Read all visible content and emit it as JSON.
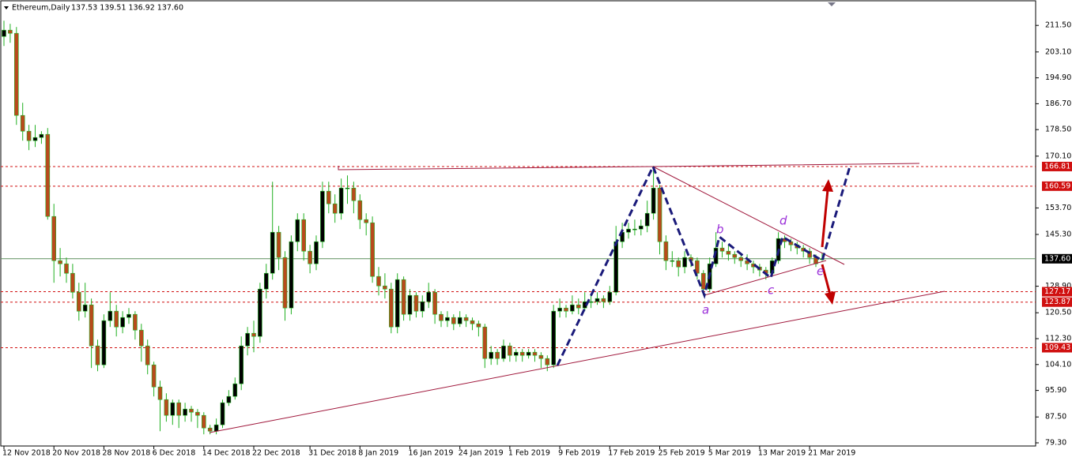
{
  "chart_data": {
    "type": "candlestick",
    "title": "Ethereum,Daily",
    "ohlc_text": "137.53 139.51 136.92 137.60",
    "up_color": "#000000",
    "down_color": "#b84a1c",
    "wick_color": "#22b022",
    "level_color": "#d01010",
    "current_color": "#5f8f5f",
    "ylim": [
      78.3,
      219.3
    ],
    "yticks": [
      {
        "value": 211.5,
        "label": "211.50"
      },
      {
        "value": 203.1,
        "label": "203.10"
      },
      {
        "value": 194.9,
        "label": "194.90"
      },
      {
        "value": 186.7,
        "label": "186.70"
      },
      {
        "value": 178.5,
        "label": "178.50"
      },
      {
        "value": 170.1,
        "label": "170.10"
      },
      {
        "value": 153.7,
        "label": "153.70"
      },
      {
        "value": 145.3,
        "label": "145.30"
      },
      {
        "value": 128.9,
        "label": "128.90"
      },
      {
        "value": 120.5,
        "label": "120.50"
      },
      {
        "value": 112.3,
        "label": "112.30"
      },
      {
        "value": 104.1,
        "label": "104.10"
      },
      {
        "value": 95.9,
        "label": "95.90"
      },
      {
        "value": 87.5,
        "label": "87.50"
      },
      {
        "value": 79.3,
        "label": "79.30"
      }
    ],
    "levels": [
      166.81,
      160.59,
      127.17,
      123.87,
      109.43
    ],
    "current_price": {
      "value": 137.6,
      "label": "137.60"
    },
    "wave_labels": [
      "a",
      "b",
      "c",
      "d",
      "e"
    ],
    "categories": [
      "12 Nov 2018",
      null,
      null,
      null,
      null,
      null,
      null,
      null,
      "20 Nov 2018",
      null,
      null,
      null,
      null,
      null,
      null,
      null,
      "28 Nov 2018",
      null,
      null,
      null,
      null,
      null,
      null,
      null,
      "6 Dec 2018",
      null,
      null,
      null,
      null,
      null,
      null,
      null,
      "14 Dec 2018",
      null,
      null,
      null,
      null,
      null,
      null,
      null,
      "22 Dec 2018",
      null,
      null,
      null,
      null,
      null,
      null,
      null,
      null,
      "31 Dec 2018",
      null,
      null,
      null,
      null,
      null,
      null,
      null,
      "8 Jan 2019",
      null,
      null,
      null,
      null,
      null,
      null,
      null,
      "16 Jan 2019",
      null,
      null,
      null,
      null,
      null,
      null,
      null,
      "24 Jan 2019",
      null,
      null,
      null,
      null,
      null,
      null,
      null,
      "1 Feb 2019",
      null,
      null,
      null,
      null,
      null,
      null,
      null,
      "9 Feb 2019",
      null,
      null,
      null,
      null,
      null,
      null,
      null,
      "17 Feb 2019",
      null,
      null,
      null,
      null,
      null,
      null,
      null,
      "25 Feb 2019",
      null,
      null,
      null,
      null,
      null,
      null,
      null,
      "5 Mar 2019",
      null,
      null,
      null,
      null,
      null,
      null,
      null,
      "13 Mar 2019",
      null,
      null,
      null,
      null,
      null,
      null,
      null,
      "21 Mar 2019",
      null,
      null
    ],
    "ohlc": [
      [
        208,
        213,
        205,
        210
      ],
      [
        210,
        212,
        206,
        209
      ],
      [
        209,
        211,
        180,
        183
      ],
      [
        183,
        187,
        175,
        178
      ],
      [
        178,
        180,
        172,
        175
      ],
      [
        175,
        180,
        173,
        176
      ],
      [
        176,
        178,
        174,
        177
      ],
      [
        177,
        179,
        150,
        151
      ],
      [
        151,
        155,
        130,
        137
      ],
      [
        137,
        141,
        132,
        136
      ],
      [
        136,
        138,
        130,
        133
      ],
      [
        133,
        136,
        125,
        127
      ],
      [
        127,
        130,
        118,
        121
      ],
      [
        121,
        130,
        119,
        123
      ],
      [
        123,
        125,
        103,
        110
      ],
      [
        110,
        112,
        102,
        104
      ],
      [
        104,
        120,
        103,
        118
      ],
      [
        118,
        127,
        116,
        121
      ],
      [
        121,
        123,
        113,
        116
      ],
      [
        116,
        121,
        114,
        119
      ],
      [
        119,
        122,
        117,
        120
      ],
      [
        120,
        121,
        112,
        115
      ],
      [
        115,
        117,
        105,
        110
      ],
      [
        110,
        112,
        101,
        104
      ],
      [
        104,
        105,
        94,
        97
      ],
      [
        97,
        99,
        83,
        93
      ],
      [
        93,
        95,
        86,
        88
      ],
      [
        88,
        93,
        85,
        92
      ],
      [
        92,
        93,
        84,
        88
      ],
      [
        88,
        92,
        86,
        90
      ],
      [
        90,
        91,
        86,
        89
      ],
      [
        89,
        90,
        84,
        88
      ],
      [
        88,
        89,
        82,
        84
      ],
      [
        84,
        85,
        82,
        83
      ],
      [
        83,
        87,
        82,
        85
      ],
      [
        85,
        93,
        84,
        92
      ],
      [
        92,
        96,
        91,
        94
      ],
      [
        94,
        100,
        93,
        98
      ],
      [
        98,
        113,
        96,
        110
      ],
      [
        110,
        116,
        107,
        114
      ],
      [
        114,
        118,
        108,
        113
      ],
      [
        113,
        130,
        111,
        128
      ],
      [
        128,
        136,
        125,
        133
      ],
      [
        133,
        162,
        131,
        146
      ],
      [
        146,
        148,
        134,
        138
      ],
      [
        138,
        140,
        118,
        122
      ],
      [
        122,
        145,
        120,
        143
      ],
      [
        143,
        152,
        140,
        150
      ],
      [
        150,
        152,
        137,
        140
      ],
      [
        140,
        142,
        133,
        136
      ],
      [
        136,
        145,
        134,
        143
      ],
      [
        143,
        162,
        141,
        159
      ],
      [
        159,
        162,
        152,
        155
      ],
      [
        155,
        158,
        149,
        152
      ],
      [
        152,
        163,
        150,
        160
      ],
      [
        160,
        164,
        155,
        160
      ],
      [
        160,
        162,
        152,
        156
      ],
      [
        156,
        158,
        147,
        150
      ],
      [
        150,
        152,
        145,
        149
      ],
      [
        149,
        151,
        130,
        132
      ],
      [
        132,
        135,
        126,
        129
      ],
      [
        129,
        133,
        125,
        128
      ],
      [
        128,
        130,
        114,
        116
      ],
      [
        116,
        133,
        114,
        131
      ],
      [
        131,
        132,
        118,
        120
      ],
      [
        120,
        128,
        118,
        126
      ],
      [
        126,
        127,
        119,
        121
      ],
      [
        121,
        126,
        119,
        124
      ],
      [
        124,
        130,
        122,
        127
      ],
      [
        127,
        128,
        117,
        120
      ],
      [
        120,
        121,
        116,
        118
      ],
      [
        118,
        121,
        116,
        119
      ],
      [
        119,
        120,
        115,
        117
      ],
      [
        117,
        121,
        116,
        119
      ],
      [
        119,
        120,
        116,
        118
      ],
      [
        118,
        119,
        115,
        117
      ],
      [
        117,
        118,
        113,
        116
      ],
      [
        116,
        117,
        103,
        106
      ],
      [
        106,
        110,
        104,
        108
      ],
      [
        108,
        109,
        104,
        106
      ],
      [
        106,
        112,
        105,
        110
      ],
      [
        110,
        111,
        105,
        107
      ],
      [
        107,
        109,
        105,
        108
      ],
      [
        108,
        109,
        105,
        107
      ],
      [
        107,
        109,
        106,
        108
      ],
      [
        108,
        109,
        105,
        107
      ],
      [
        107,
        108,
        103,
        106
      ],
      [
        106,
        107,
        102,
        104
      ],
      [
        104,
        123,
        103,
        121
      ],
      [
        121,
        125,
        119,
        122
      ],
      [
        122,
        123,
        119,
        121
      ],
      [
        121,
        126,
        120,
        123
      ],
      [
        123,
        125,
        120,
        122
      ],
      [
        122,
        127,
        121,
        124
      ],
      [
        124,
        126,
        122,
        124
      ],
      [
        124,
        127,
        123,
        125
      ],
      [
        125,
        126,
        122,
        124
      ],
      [
        124,
        129,
        123,
        127
      ],
      [
        127,
        148,
        126,
        143
      ],
      [
        143,
        149,
        141,
        146
      ],
      [
        146,
        149,
        144,
        147
      ],
      [
        147,
        150,
        145,
        147
      ],
      [
        147,
        150,
        145,
        148
      ],
      [
        148,
        156,
        146,
        152
      ],
      [
        152,
        167,
        150,
        160
      ],
      [
        160,
        161,
        139,
        143
      ],
      [
        143,
        145,
        134,
        137
      ],
      [
        137,
        140,
        135,
        137
      ],
      [
        137,
        138,
        132,
        135
      ],
      [
        135,
        140,
        133,
        138
      ],
      [
        138,
        139,
        135,
        137
      ],
      [
        137,
        138,
        131,
        133
      ],
      [
        133,
        134,
        126,
        128
      ],
      [
        128,
        138,
        127,
        136
      ],
      [
        136,
        146,
        135,
        141
      ],
      [
        141,
        143,
        138,
        140
      ],
      [
        140,
        142,
        137,
        139
      ],
      [
        139,
        140,
        136,
        138
      ],
      [
        138,
        139,
        135,
        137
      ],
      [
        137,
        139,
        134,
        136
      ],
      [
        136,
        137,
        133,
        135
      ],
      [
        135,
        136,
        132,
        134
      ],
      [
        134,
        135,
        131,
        133
      ],
      [
        133,
        138,
        132,
        137
      ],
      [
        137,
        146,
        136,
        144
      ],
      [
        144,
        145,
        141,
        143
      ],
      [
        143,
        144,
        140,
        142
      ],
      [
        142,
        143,
        139,
        141
      ],
      [
        141,
        142,
        138,
        140
      ],
      [
        140,
        141,
        136,
        138
      ],
      [
        138,
        139,
        135,
        136
      ],
      [
        137.53,
        139.51,
        136.92,
        137.6
      ]
    ]
  }
}
